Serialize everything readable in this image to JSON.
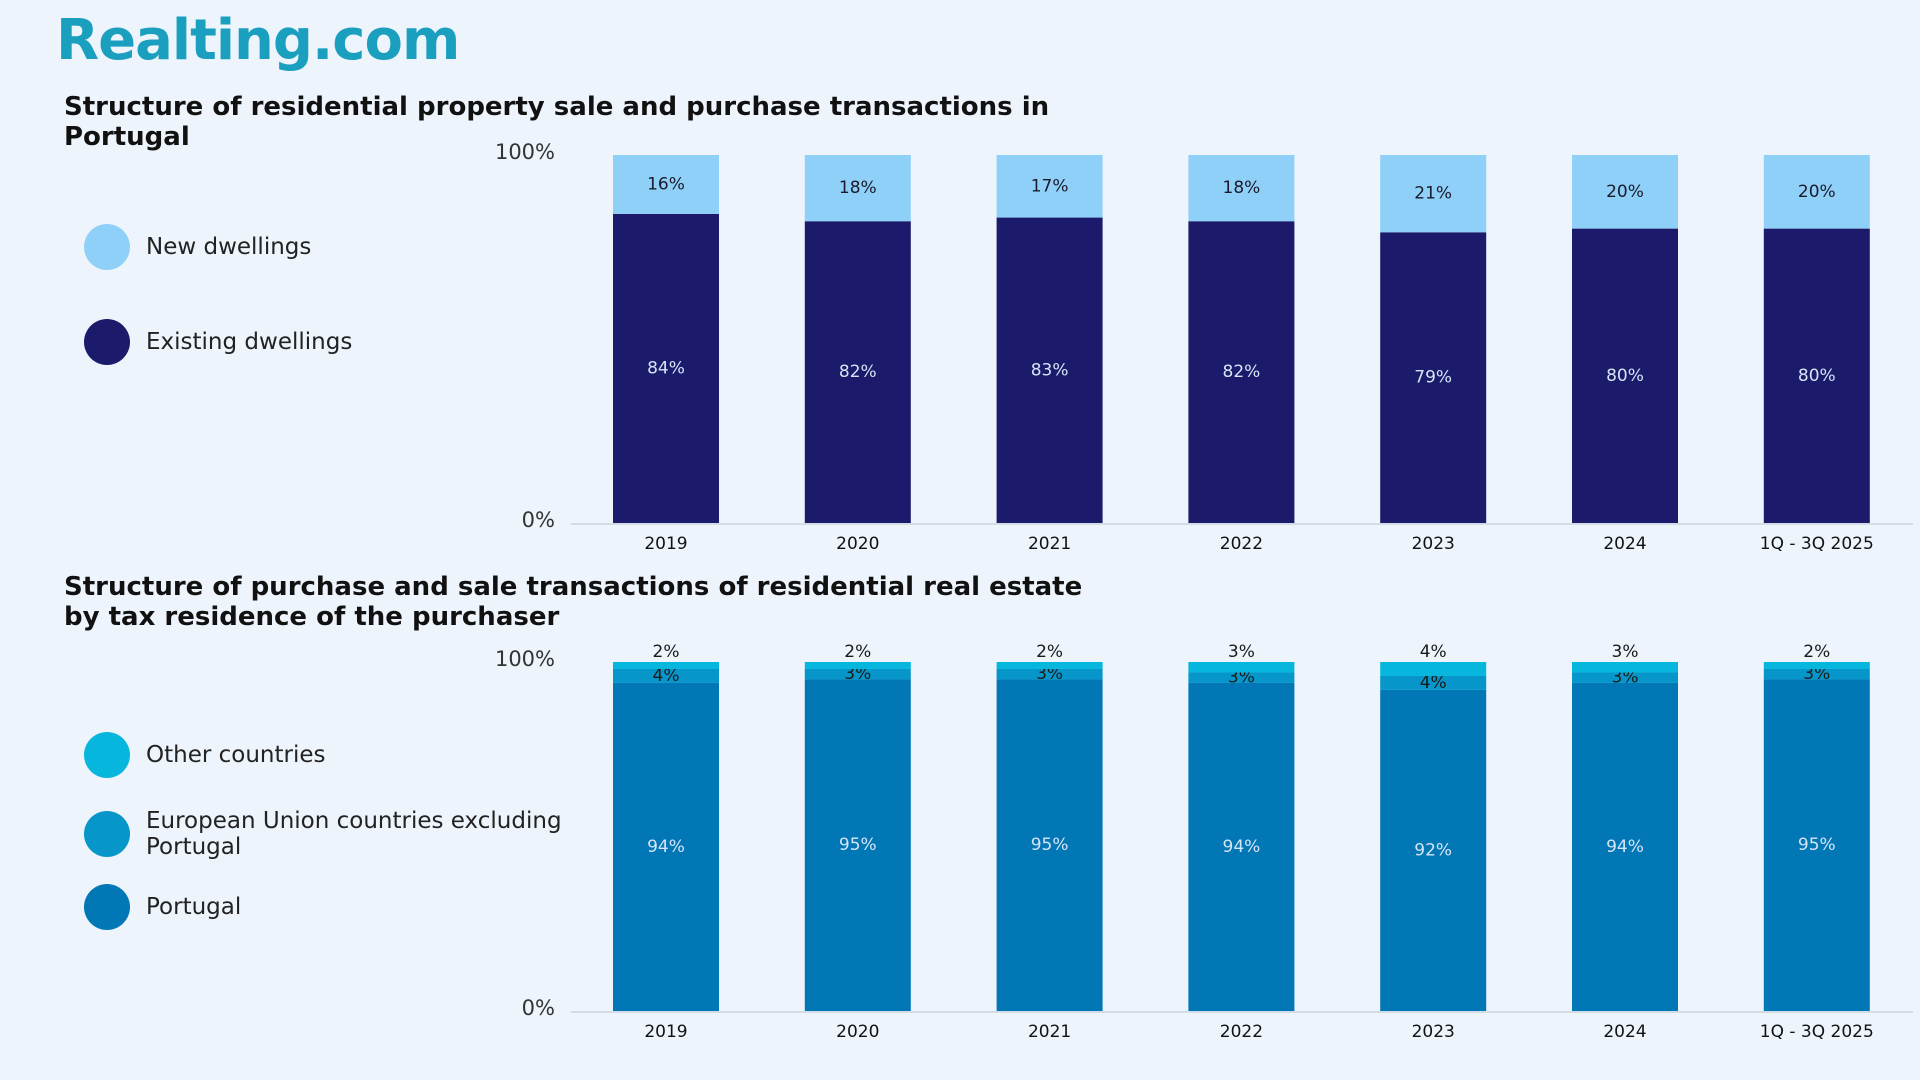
{
  "header": {
    "logo": "Realting.com"
  },
  "chart_data": [
    {
      "type": "bar",
      "stacked": true,
      "title": "Structure of residential property sale and purchase transactions in Portugal",
      "categories": [
        "2019",
        "2020",
        "2021",
        "2022",
        "2023",
        "2024",
        "1Q - 3Q 2025"
      ],
      "series": [
        {
          "name": "Existing dwellings",
          "color": "#1b1a6b",
          "values": [
            84,
            82,
            83,
            82,
            79,
            80,
            80
          ],
          "value_labels": [
            "84%",
            "82%",
            "83%",
            "82%",
            "79%",
            "80%",
            "80%"
          ]
        },
        {
          "name": "New dwellings",
          "color": "#8fd0f8",
          "values": [
            16,
            18,
            17,
            18,
            21,
            20,
            20
          ],
          "value_labels": [
            "16%",
            "18%",
            "17%",
            "18%",
            "21%",
            "20%",
            "20%"
          ]
        }
      ],
      "ylim": [
        0,
        100
      ],
      "yticks": [
        {
          "value": 0,
          "label": "0%"
        },
        {
          "value": 100,
          "label": "100%"
        }
      ]
    },
    {
      "type": "bar",
      "stacked": true,
      "title": "Structure of purchase and sale transactions of residential real estate by tax residence of the purchaser",
      "categories": [
        "2019",
        "2020",
        "2021",
        "2022",
        "2023",
        "2024",
        "1Q - 3Q 2025"
      ],
      "series": [
        {
          "name": "Portugal",
          "color": "#0277b5",
          "values": [
            94,
            95,
            95,
            94,
            92,
            94,
            95
          ],
          "value_labels": [
            "94%",
            "95%",
            "95%",
            "94%",
            "92%",
            "94%",
            "95%"
          ]
        },
        {
          "name": "European Union countries excluding Portugal",
          "color": "#0796c9",
          "values": [
            4,
            3,
            3,
            3,
            4,
            3,
            3
          ],
          "value_labels": [
            "4%",
            "3%",
            "3%",
            "3%",
            "4%",
            "3%",
            "3%"
          ]
        },
        {
          "name": "Other countries",
          "color": "#06b6dc",
          "values": [
            2,
            2,
            2,
            3,
            4,
            3,
            2
          ],
          "value_labels": [
            "2%",
            "2%",
            "2%",
            "3%",
            "4%",
            "3%",
            "2%"
          ]
        }
      ],
      "ylim": [
        0,
        100
      ],
      "yticks": [
        {
          "value": 0,
          "label": "0%"
        },
        {
          "value": 100,
          "label": "100%"
        }
      ]
    }
  ]
}
